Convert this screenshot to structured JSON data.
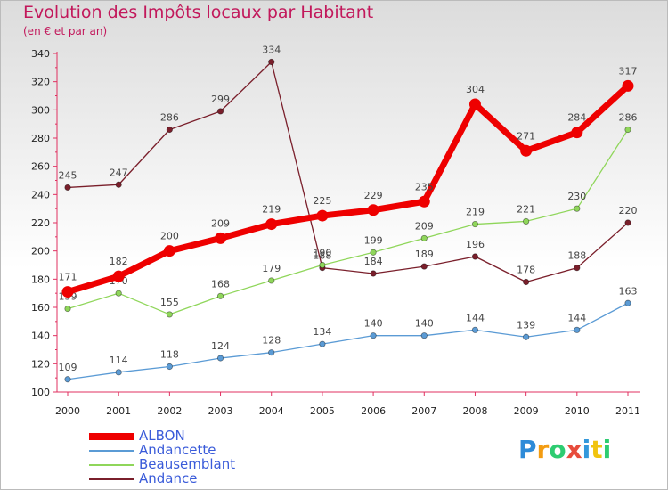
{
  "header": {
    "title": "Evolution des Impôts locaux par Habitant",
    "subtitle": "(en € et par an)"
  },
  "chart_data": {
    "type": "line",
    "title": "Evolution des Impôts locaux par Habitant",
    "subtitle": "(en € et par an)",
    "xlabel": "",
    "ylabel": "",
    "ylim": [
      100,
      340
    ],
    "yticks": [
      100,
      120,
      140,
      160,
      180,
      200,
      220,
      240,
      260,
      280,
      300,
      320,
      340
    ],
    "categories": [
      "2000",
      "2001",
      "2002",
      "2003",
      "2004",
      "2005",
      "2006",
      "2007",
      "2008",
      "2009",
      "2010",
      "2011"
    ],
    "grid": false,
    "legend_position": "bottom-left",
    "series": [
      {
        "name": "Andance",
        "color": "#7a1f2b",
        "values": [
          245,
          247,
          286,
          299,
          334,
          188,
          184,
          189,
          196,
          178,
          188,
          220
        ]
      },
      {
        "name": "Beausemblant",
        "color": "#8fd65a",
        "values": [
          159,
          170,
          155,
          168,
          179,
          190,
          199,
          209,
          219,
          221,
          230,
          286
        ]
      },
      {
        "name": "Andancette",
        "color": "#5b9bd5",
        "values": [
          109,
          114,
          118,
          124,
          128,
          134,
          140,
          140,
          144,
          139,
          144,
          163
        ]
      },
      {
        "name": "ALBON",
        "color": "#ee0000",
        "values": [
          171,
          182,
          200,
          209,
          219,
          225,
          229,
          235,
          304,
          271,
          284,
          317
        ]
      }
    ]
  },
  "legend": {
    "items": [
      {
        "label": "ALBON",
        "color": "#ee0000"
      },
      {
        "label": "Andancette",
        "color": "#5b9bd5"
      },
      {
        "label": "Beausemblant",
        "color": "#8fd65a"
      },
      {
        "label": "Andance",
        "color": "#7a1f2b"
      }
    ]
  },
  "logo": {
    "letters": [
      "P",
      "r",
      "o",
      "x",
      "i",
      "t",
      "i"
    ],
    "colors": [
      "#2e8bd8",
      "#f39c12",
      "#2ecc71",
      "#e74c3c",
      "#3498db",
      "#f1c40f",
      "#2ecc71"
    ]
  }
}
